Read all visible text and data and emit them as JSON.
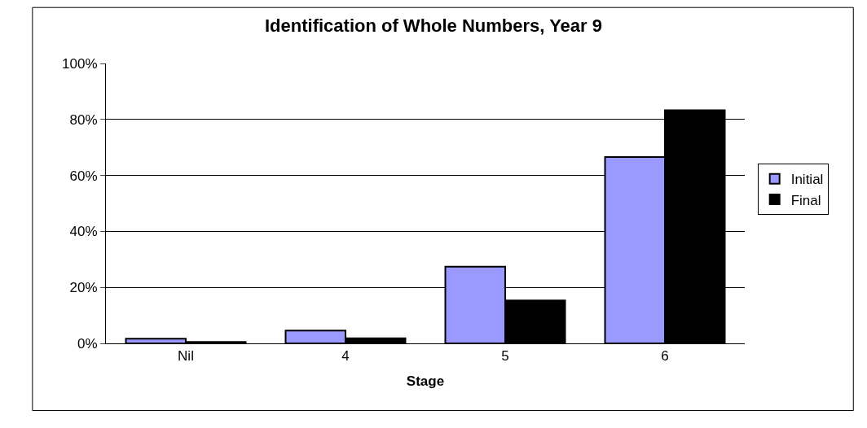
{
  "chart_data": {
    "type": "bar",
    "title": "Identification of Whole Numbers, Year 9",
    "xlabel": "Stage",
    "categories": [
      "Nil",
      "4",
      "5",
      "6"
    ],
    "series": [
      {
        "name": "Initial",
        "color": "#9999ff",
        "values": [
          1.7,
          4.6,
          27.4,
          66.6
        ]
      },
      {
        "name": "Final",
        "color": "#000000",
        "values": [
          0.5,
          1.8,
          15.3,
          83.3
        ]
      }
    ],
    "ylim": [
      0,
      100
    ],
    "yticks": [
      {
        "value": 0,
        "label": "0%"
      },
      {
        "value": 20,
        "label": "20%"
      },
      {
        "value": 40,
        "label": "40%"
      },
      {
        "value": 60,
        "label": "60%"
      },
      {
        "value": 80,
        "label": "80%"
      },
      {
        "value": 100,
        "label": "100%"
      }
    ],
    "grid": "y",
    "legend": "right"
  }
}
